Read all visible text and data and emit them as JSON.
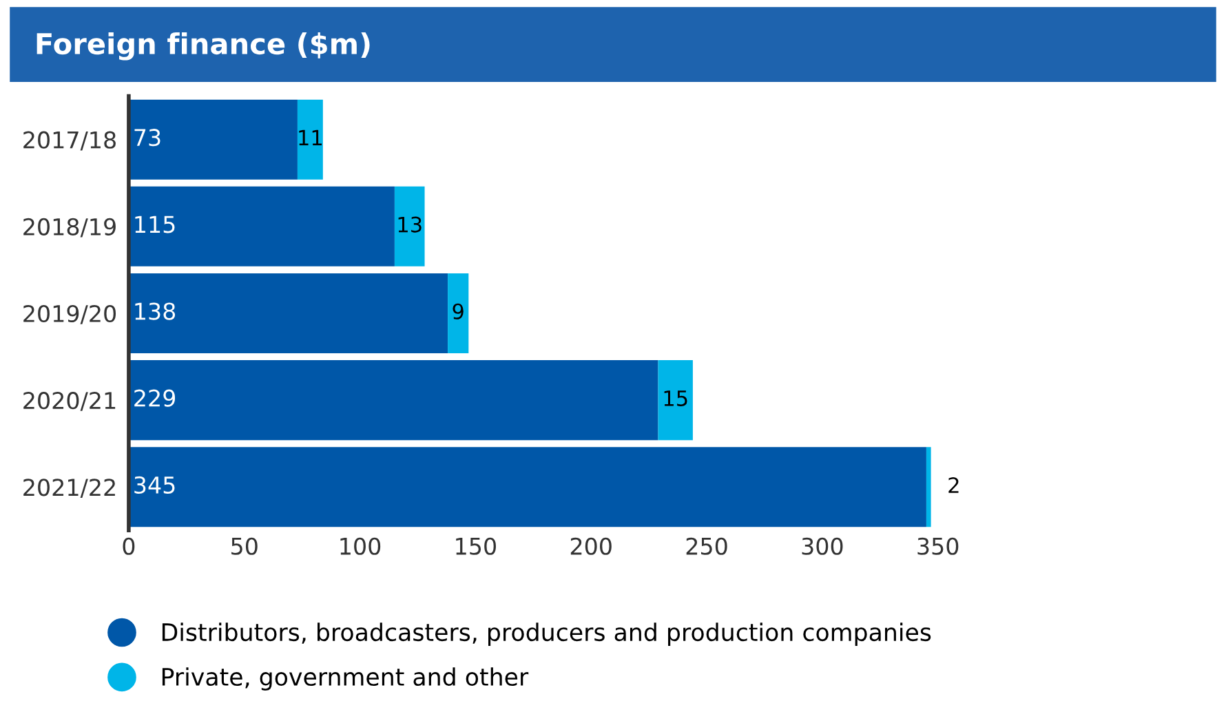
{
  "chart_data": {
    "type": "bar",
    "orientation": "horizontal",
    "stacked": true,
    "title": "Foreign finance ($m)",
    "categories": [
      "2017/18",
      "2018/19",
      "2019/20",
      "2020/21",
      "2021/22"
    ],
    "series": [
      {
        "name": "Distributors, broadcasters, producers and production companies",
        "color": "#0057a8",
        "values": [
          73,
          115,
          138,
          229,
          345
        ]
      },
      {
        "name": "Private, government and other",
        "color": "#00b5e8",
        "values": [
          11,
          13,
          9,
          15,
          2
        ]
      }
    ],
    "xlim": [
      0,
      350
    ],
    "xticks": [
      0,
      50,
      100,
      150,
      200,
      250,
      300,
      350
    ],
    "data_labels": true,
    "grid": false,
    "legend": "bottom"
  }
}
